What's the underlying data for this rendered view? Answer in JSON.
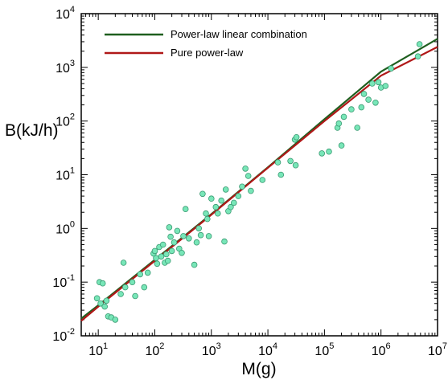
{
  "chart_data": {
    "type": "scatter",
    "xlabel": "M(g)",
    "ylabel": "B(kJ/h)",
    "x_scale": "log",
    "y_scale": "log",
    "xlim": [
      5,
      10000000
    ],
    "ylim": [
      0.01,
      10000
    ],
    "x_ticks": [
      {
        "base": "10",
        "exp": "1",
        "value": 10
      },
      {
        "base": "10",
        "exp": "2",
        "value": 100
      },
      {
        "base": "10",
        "exp": "3",
        "value": 1000
      },
      {
        "base": "10",
        "exp": "4",
        "value": 10000
      },
      {
        "base": "10",
        "exp": "5",
        "value": 100000
      },
      {
        "base": "10",
        "exp": "6",
        "value": 1000000
      },
      {
        "base": "10",
        "exp": "7",
        "value": 10000000
      }
    ],
    "y_ticks": [
      {
        "base": "10",
        "exp": "-2",
        "value": 0.01
      },
      {
        "base": "10",
        "exp": "-1",
        "value": 0.1
      },
      {
        "base": "10",
        "exp": "0",
        "value": 1
      },
      {
        "base": "10",
        "exp": "1",
        "value": 10
      },
      {
        "base": "10",
        "exp": "2",
        "value": 100
      },
      {
        "base": "10",
        "exp": "3",
        "value": 1000
      },
      {
        "base": "10",
        "exp": "4",
        "value": 10000
      }
    ],
    "legend": {
      "position": "top-left",
      "entries": [
        {
          "label": "Power-law linear combination",
          "color": "#1f5f1f"
        },
        {
          "label": "Pure power-law",
          "color": "#b01818"
        }
      ]
    },
    "series": [
      {
        "type": "line",
        "color": "#1f5f1f",
        "x": [
          5,
          10,
          100,
          1000,
          10000,
          100000,
          1000000,
          10000000
        ],
        "y": [
          0.021,
          0.037,
          0.26,
          1.85,
          13.8,
          108,
          830,
          3400
        ]
      },
      {
        "type": "line",
        "color": "#b01818",
        "x": [
          5,
          10,
          100,
          1000,
          10000,
          100000,
          1000000,
          10000000
        ],
        "y": [
          0.019,
          0.035,
          0.25,
          1.8,
          13.5,
          100,
          700,
          2400
        ]
      },
      {
        "type": "scatter",
        "marker_color": "#78e6b8",
        "marker_edge": "#3a9a72",
        "x": [
          9.5,
          10.5,
          11,
          12,
          13,
          14,
          15,
          17,
          20,
          25,
          28,
          30,
          40,
          45,
          55,
          65,
          75,
          95,
          100,
          105,
          110,
          120,
          130,
          140,
          150,
          160,
          170,
          180,
          190,
          200,
          220,
          250,
          270,
          300,
          320,
          350,
          400,
          500,
          550,
          600,
          650,
          700,
          800,
          850,
          900,
          1000,
          1200,
          1300,
          1500,
          1700,
          1800,
          2000,
          2200,
          2500,
          3000,
          3500,
          4000,
          4500,
          5000,
          8000,
          15000,
          17000,
          25000,
          30000,
          31000,
          32000,
          90000,
          120000,
          170000,
          180000,
          200000,
          220000,
          300000,
          380000,
          450000,
          500000,
          600000,
          700000,
          800000,
          900000,
          1000000,
          1200000,
          1500000,
          4500000,
          4800000
        ],
        "y": [
          0.05,
          0.1,
          0.04,
          0.095,
          0.035,
          0.045,
          0.023,
          0.022,
          0.02,
          0.06,
          0.23,
          0.08,
          0.1,
          0.055,
          0.14,
          0.08,
          0.15,
          0.34,
          0.38,
          0.28,
          0.22,
          0.45,
          0.3,
          0.5,
          0.23,
          0.33,
          0.25,
          1.05,
          0.7,
          0.38,
          0.55,
          0.9,
          0.42,
          0.35,
          0.72,
          2.3,
          0.65,
          0.21,
          0.55,
          1.0,
          0.75,
          4.4,
          1.9,
          1.5,
          0.72,
          3.6,
          2.5,
          1.9,
          3.3,
          0.57,
          5.3,
          2.1,
          2.5,
          3.0,
          4.0,
          6.0,
          13,
          9.5,
          5.0,
          8.0,
          17,
          10,
          18,
          45,
          15,
          50,
          25,
          27,
          75,
          90,
          35,
          120,
          165,
          75,
          180,
          320,
          250,
          500,
          220,
          530,
          420,
          450,
          950,
          1600,
          2700
        ]
      }
    ]
  }
}
